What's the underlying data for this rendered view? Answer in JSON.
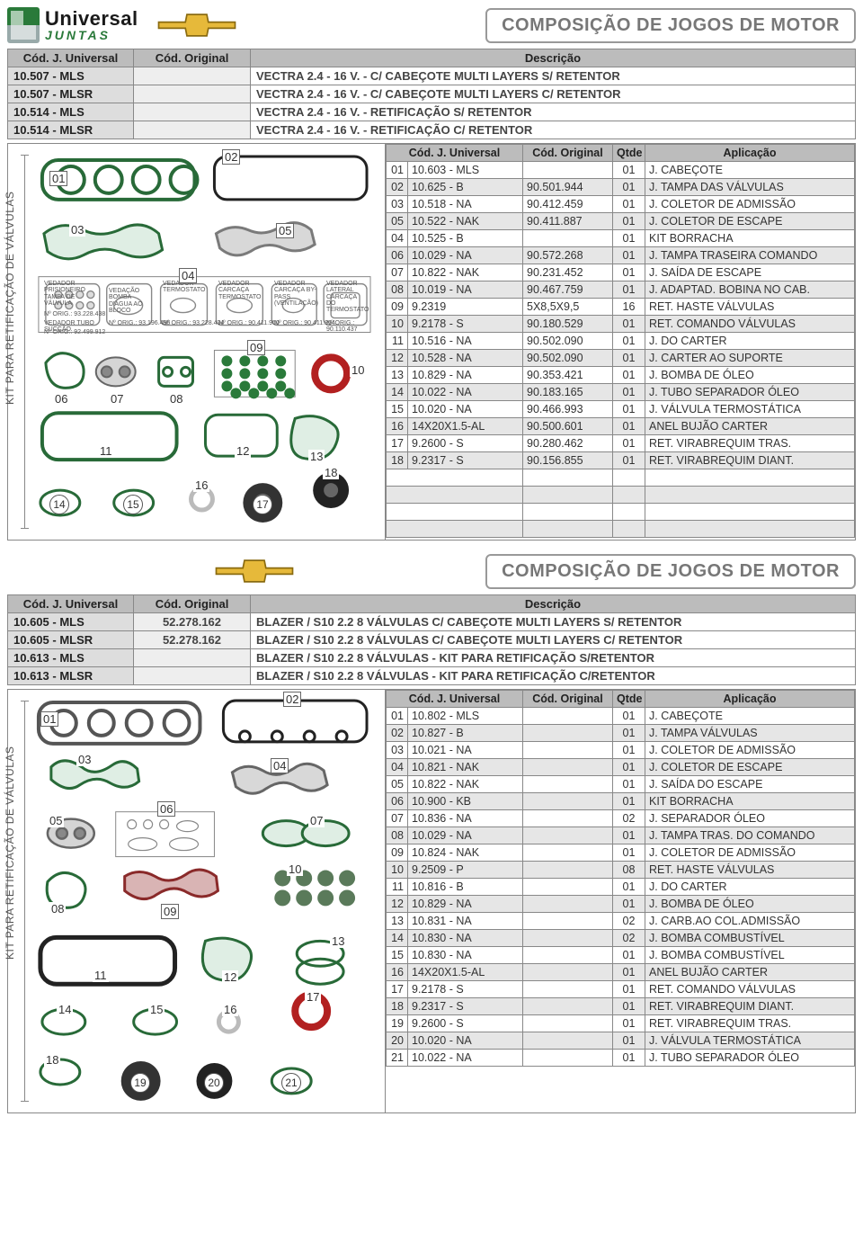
{
  "brand": {
    "line1": "Universal",
    "line2": "JUNTAS"
  },
  "pageTitle": "COMPOSIÇÃO DE JOGOS DE MOTOR",
  "kitSideLabel": "KIT PARA RETIFICAÇÃO DE VÁLVULAS",
  "block1": {
    "introHeaders": [
      "Cód. J. Universal",
      "Cód. Original",
      "Descrição"
    ],
    "intro": [
      {
        "code": "10.507 - MLS",
        "orig": "",
        "desc": "VECTRA 2.4 - 16 V. - C/ CABEÇOTE MULTI LAYERS S/ RETENTOR"
      },
      {
        "code": "10.507 - MLSR",
        "orig": "",
        "desc": "VECTRA 2.4 - 16 V. - C/ CABEÇOTE MULTI LAYERS C/ RETENTOR"
      },
      {
        "code": "10.514 - MLS",
        "orig": "",
        "desc": "VECTRA 2.4 - 16 V. - RETIFICAÇÃO S/ RETENTOR"
      },
      {
        "code": "10.514 - MLSR",
        "orig": "",
        "desc": "VECTRA 2.4 - 16 V. - RETIFICAÇÃO C/ RETENTOR"
      }
    ],
    "partsHeaders": [
      "",
      "Cód. J. Universal",
      "Cód. Original",
      "Qtde",
      "Aplicação"
    ],
    "parts": [
      {
        "n": "01",
        "code": "10.603 - MLS",
        "orig": "",
        "q": "01",
        "app": "J. CABEÇOTE"
      },
      {
        "n": "02",
        "code": "10.625 - B",
        "orig": "90.501.944",
        "q": "01",
        "app": "J. TAMPA DAS VÁLVULAS"
      },
      {
        "n": "03",
        "code": "10.518 - NA",
        "orig": "90.412.459",
        "q": "01",
        "app": "J. COLETOR DE ADMISSÃO"
      },
      {
        "n": "05",
        "code": "10.522 - NAK",
        "orig": "90.411.887",
        "q": "01",
        "app": "J. COLETOR DE ESCAPE"
      },
      {
        "n": "04",
        "code": "10.525 - B",
        "orig": "",
        "q": "01",
        "app": "KIT BORRACHA"
      },
      {
        "n": "06",
        "code": "10.029 - NA",
        "orig": "90.572.268",
        "q": "01",
        "app": "J. TAMPA TRASEIRA COMANDO"
      },
      {
        "n": "07",
        "code": "10.822 - NAK",
        "orig": "90.231.452",
        "q": "01",
        "app": "J. SAÍDA DE ESCAPE"
      },
      {
        "n": "08",
        "code": "10.019 - NA",
        "orig": "90.467.759",
        "q": "01",
        "app": "J. ADAPTAD. BOBINA NO CAB."
      },
      {
        "n": "09",
        "code": "9.2319",
        "orig": "5X8,5X9,5",
        "q": "16",
        "app": "RET. HASTE VÁLVULAS"
      },
      {
        "n": "10",
        "code": "9.2178 - S",
        "orig": "90.180.529",
        "q": "01",
        "app": "RET. COMANDO VÁLVULAS"
      },
      {
        "n": "11",
        "code": "10.516 - NA",
        "orig": "90.502.090",
        "q": "01",
        "app": "J. DO CARTER"
      },
      {
        "n": "12",
        "code": "10.528 - NA",
        "orig": "90.502.090",
        "q": "01",
        "app": "J. CARTER AO SUPORTE"
      },
      {
        "n": "13",
        "code": "10.829 - NA",
        "orig": "90.353.421",
        "q": "01",
        "app": "J. BOMBA DE ÓLEO"
      },
      {
        "n": "14",
        "code": "10.022 - NA",
        "orig": "90.183.165",
        "q": "01",
        "app": "J. TUBO SEPARADOR ÓLEO"
      },
      {
        "n": "15",
        "code": "10.020 - NA",
        "orig": "90.466.993",
        "q": "01",
        "app": "J. VÁLVULA TERMOSTÁTICA"
      },
      {
        "n": "16",
        "code": "14X20X1.5-AL",
        "orig": "90.500.601",
        "q": "01",
        "app": "ANEL BUJÃO CARTER"
      },
      {
        "n": "17",
        "code": "9.2600 - S",
        "orig": "90.280.462",
        "q": "01",
        "app": "RET. VIRABREQUIM TRAS."
      },
      {
        "n": "18",
        "code": "9.2317 - S",
        "orig": "90.156.855",
        "q": "01",
        "app": "RET. VIRABREQUIM DIANT."
      }
    ],
    "emptyRows": 4,
    "miniLabels": [
      "VEDADOR PRISIONEIRO TAMPA DE VÁLVULA",
      "VEDAÇÃO BOMBA D'ÁGUA AO BLOCO",
      "VEDADOR TERMOSTATO",
      "VEDADOR CARCAÇA TERMOSTATO",
      "VEDADOR CARCAÇA BY-PASS (VENTILAÇÃO)",
      "VEDADOR LATERAL CARCAÇA DO TERMOSTATO",
      "VEDADOR TUBO SUCÇÃO"
    ],
    "miniOrig": [
      "Nº ORIG.: 93.228.438",
      "Nº ORIG.: 93.196.496",
      "Nº ORIG.: 93.228.434",
      "Nº ORIG.: 90.411.950",
      "Nº ORIG.: 90.411.954",
      "Nº ORIG.: 90.110.437",
      "Nº ORIG.: 92.499.912"
    ]
  },
  "block2": {
    "introHeaders": [
      "Cód. J. Universal",
      "Cód. Original",
      "Descrição"
    ],
    "intro": [
      {
        "code": "10.605 - MLS",
        "orig": "52.278.162",
        "desc": "BLAZER / S10 2.2 8 VÁLVULAS C/ CABEÇOTE MULTI LAYERS S/ RETENTOR"
      },
      {
        "code": "10.605 - MLSR",
        "orig": "52.278.162",
        "desc": "BLAZER / S10 2.2 8 VÁLVULAS C/ CABEÇOTE MULTI LAYERS C/ RETENTOR"
      },
      {
        "code": "10.613 - MLS",
        "orig": "",
        "desc": "BLAZER / S10 2.2 8 VÁLVULAS  - KIT PARA RETIFICAÇÃO S/RETENTOR"
      },
      {
        "code": "10.613 - MLSR",
        "orig": "",
        "desc": "BLAZER / S10 2.2 8 VÁLVULAS  - KIT PARA RETIFICAÇÃO C/RETENTOR"
      }
    ],
    "partsHeaders": [
      "",
      "Cód. J. Universal",
      "Cód. Original",
      "Qtde",
      "Aplicação"
    ],
    "parts": [
      {
        "n": "01",
        "code": "10.802 - MLS",
        "orig": "",
        "q": "01",
        "app": "J. CABEÇOTE"
      },
      {
        "n": "02",
        "code": "10.827 - B",
        "orig": "",
        "q": "01",
        "app": "J. TAMPA VÁLVULAS"
      },
      {
        "n": "03",
        "code": "10.021 - NA",
        "orig": "",
        "q": "01",
        "app": "J. COLETOR DE ADMISSÃO"
      },
      {
        "n": "04",
        "code": "10.821 - NAK",
        "orig": "",
        "q": "01",
        "app": "J. COLETOR DE ESCAPE"
      },
      {
        "n": "05",
        "code": "10.822 - NAK",
        "orig": "",
        "q": "01",
        "app": "J. SAÍDA DO ESCAPE"
      },
      {
        "n": "06",
        "code": "10.900 - KB",
        "orig": "",
        "q": "01",
        "app": "KIT BORRACHA"
      },
      {
        "n": "07",
        "code": "10.836 - NA",
        "orig": "",
        "q": "02",
        "app": "J. SEPARADOR ÓLEO"
      },
      {
        "n": "08",
        "code": "10.029 - NA",
        "orig": "",
        "q": "01",
        "app": "J. TAMPA TRAS. DO COMANDO"
      },
      {
        "n": "09",
        "code": "10.824 - NAK",
        "orig": "",
        "q": "01",
        "app": "J. COLETOR DE ADMISSÃO"
      },
      {
        "n": "10",
        "code": "9.2509 - P",
        "orig": "",
        "q": "08",
        "app": "RET. HASTE VÁLVULAS"
      },
      {
        "n": "11",
        "code": "10.816 - B",
        "orig": "",
        "q": "01",
        "app": "J. DO CARTER"
      },
      {
        "n": "12",
        "code": "10.829 - NA",
        "orig": "",
        "q": "01",
        "app": "J. BOMBA DE ÓLEO"
      },
      {
        "n": "13",
        "code": "10.831 - NA",
        "orig": "",
        "q": "02",
        "app": "J. CARB.AO COL.ADMISSÃO"
      },
      {
        "n": "14",
        "code": "10.830 - NA",
        "orig": "",
        "q": "02",
        "app": "J. BOMBA COMBUSTÍVEL"
      },
      {
        "n": "15",
        "code": "10.830 - NA",
        "orig": "",
        "q": "01",
        "app": "J. BOMBA COMBUSTÍVEL"
      },
      {
        "n": "16",
        "code": "14X20X1.5-AL",
        "orig": "",
        "q": "01",
        "app": "ANEL BUJÃO CARTER"
      },
      {
        "n": "17",
        "code": "9.2178 - S",
        "orig": "",
        "q": "01",
        "app": "RET. COMANDO VÁLVULAS"
      },
      {
        "n": "18",
        "code": "9.2317 - S",
        "orig": "",
        "q": "01",
        "app": "RET. VIRABREQUIM DIANT."
      },
      {
        "n": "19",
        "code": "9.2600 - S",
        "orig": "",
        "q": "01",
        "app": "RET. VIRABREQUIM TRAS."
      },
      {
        "n": "20",
        "code": "10.020 - NA",
        "orig": "",
        "q": "01",
        "app": "J. VÁLVULA TERMOSTÁTICA"
      },
      {
        "n": "21",
        "code": "10.022 - NA",
        "orig": "",
        "q": "01",
        "app": "J. TUBO SEPARADOR ÓLEO"
      }
    ],
    "emptyRows": 0
  },
  "colors": {
    "headerBg": "#bcbcbc",
    "altRow": "#e6e6e6",
    "border": "#888888",
    "green": "#2a7a3a",
    "text": "#333333"
  }
}
